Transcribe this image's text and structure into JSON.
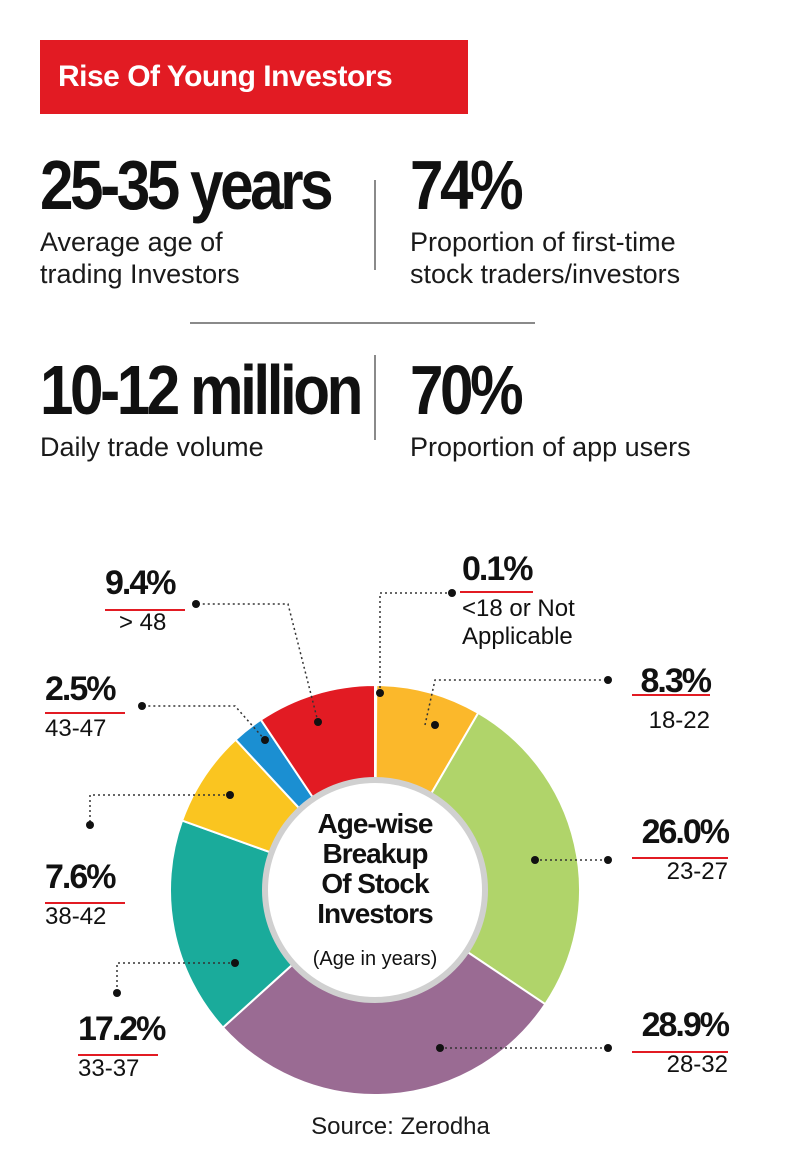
{
  "title": "Rise Of Young Investors",
  "stats": [
    {
      "value": "25-35 years",
      "label": "Average age of\ntrading Investors"
    },
    {
      "value": "74%",
      "label": "Proportion of first-time\nstock traders/investors"
    },
    {
      "value": "10-12 million",
      "label": "Daily trade volume"
    },
    {
      "value": "70%",
      "label": "Proportion of app users"
    }
  ],
  "chart_data": {
    "type": "pie",
    "variant": "donut",
    "center_title": [
      "Age-wise",
      "Breakup",
      "Of Stock",
      "Investors"
    ],
    "center_subtitle": "(Age in years)",
    "categories": [
      "<18 or Not Applicable",
      "18-22",
      "23-27",
      "28-32",
      "33-37",
      "38-42",
      "43-47",
      "> 48"
    ],
    "values": [
      0.1,
      8.3,
      26.0,
      28.9,
      17.2,
      7.6,
      2.5,
      9.4
    ],
    "value_labels": [
      "0.1%",
      "8.3%",
      "26.0%",
      "28.9%",
      "17.2%",
      "7.6%",
      "2.5%",
      "9.4%"
    ],
    "category_labels": [
      [
        "<18 or Not",
        "Applicable"
      ],
      [
        "18-22"
      ],
      [
        "23-27"
      ],
      [
        "28-32"
      ],
      [
        "33-37"
      ],
      [
        "38-42"
      ],
      [
        "43-47"
      ],
      [
        "> 48"
      ]
    ],
    "colors": [
      "#fbb82b",
      "#fbb82b",
      "#b0d46a",
      "#9a6b93",
      "#1aab9b",
      "#fac520",
      "#1b8fd2",
      "#e21b23"
    ]
  },
  "colors": {
    "accent": "#e21b23",
    "divider": "#8a8a8a"
  },
  "source": "Source: Zerodha"
}
